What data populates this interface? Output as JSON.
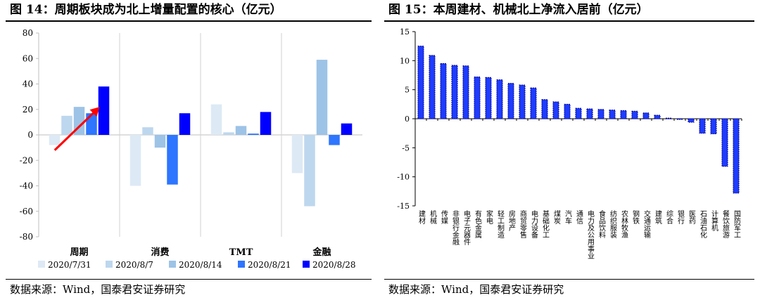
{
  "left": {
    "title": "图 14：周期板块成为北上增量配置的核心（亿元）",
    "source": "数据来源：Wind，国泰君安证券研究"
  },
  "right": {
    "title": "图 15：本周建材、机械北上净流入居前（亿元）",
    "source": "数据来源：Wind，国泰君安证券研究"
  },
  "colors": {
    "series": [
      "#dde9f5",
      "#bdd7ee",
      "#9dc3e6",
      "#2e75ff",
      "#0000ff"
    ],
    "bar15": "#1f3cff",
    "arrow": "#ff0000"
  },
  "chart_data": [
    {
      "type": "bar",
      "title": "周期板块成为北上增量配置的核心（亿元）",
      "categories": [
        "周期",
        "消费",
        "TMT",
        "金融"
      ],
      "series": [
        {
          "name": "2020/7/31",
          "values": [
            -8,
            -40,
            24,
            -30
          ]
        },
        {
          "name": "2020/8/7",
          "values": [
            15,
            6,
            2,
            -56
          ]
        },
        {
          "name": "2020/8/14",
          "values": [
            22,
            -10,
            7,
            59
          ]
        },
        {
          "name": "2020/8/21",
          "values": [
            17,
            -39,
            1,
            -8
          ]
        },
        {
          "name": "2020/8/28",
          "values": [
            38,
            17,
            18,
            9
          ]
        }
      ],
      "ylim": [
        -80,
        80
      ],
      "yticks": [
        -80,
        -60,
        -40,
        -20,
        0,
        20,
        40,
        60,
        80
      ],
      "legend": "bottom",
      "grid": false
    },
    {
      "type": "bar",
      "title": "本周建材、机械北上净流入居前（亿元）",
      "categories": [
        "建材",
        "机械",
        "传媒",
        "非银行金融",
        "电子元器件",
        "有色金属",
        "家电",
        "轻工制造",
        "房地产",
        "商贸零售",
        "电力设备",
        "基础化工",
        "煤炭",
        "汽车",
        "通信",
        "电力及公用事业",
        "食品饮料",
        "纺织服装",
        "农林牧渔",
        "钢铁",
        "交通运输",
        "建筑",
        "综合",
        "银行",
        "医药",
        "石油石化",
        "计算机",
        "餐饮旅游",
        "国防军工"
      ],
      "values": [
        12.5,
        10.9,
        9.5,
        9.2,
        9.1,
        7.2,
        7.1,
        6.7,
        6.1,
        5.8,
        5.3,
        3.3,
        2.9,
        2.5,
        1.8,
        1.7,
        1.6,
        1.5,
        1.4,
        1.3,
        1.0,
        0.6,
        0.1,
        -0.1,
        -0.6,
        -2.5,
        -2.6,
        -8.2,
        -12.8
      ],
      "ylim": [
        -15,
        15
      ],
      "yticks": [
        -15,
        -10,
        -5,
        0,
        5,
        10,
        15
      ],
      "grid": false
    }
  ]
}
